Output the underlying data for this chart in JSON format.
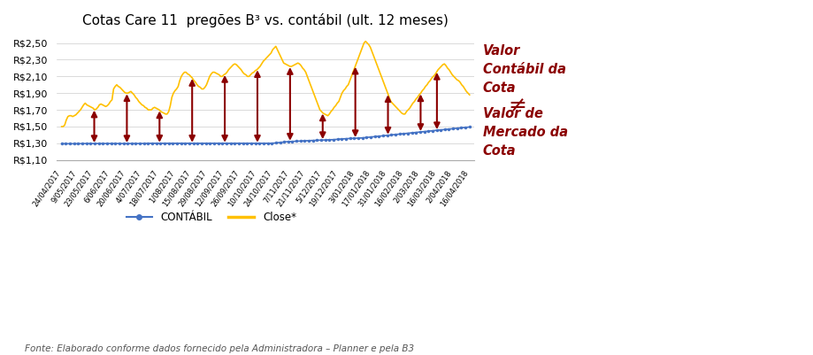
{
  "title": "Cotas Care 11  pregões B³ vs. contábil (ult. 12 meses)",
  "ylim": [
    1.1,
    2.6
  ],
  "yticks": [
    1.1,
    1.3,
    1.5,
    1.7,
    1.9,
    2.1,
    2.3,
    2.5
  ],
  "ytick_labels": [
    "R$1,10",
    "R$1,30",
    "R$1,50",
    "R$1,70",
    "R$1,90",
    "R$2,10",
    "R$2,30",
    "R$2,50"
  ],
  "x_labels": [
    "24/04/2017",
    "9/05/2017",
    "23/05/2017",
    "6/06/2017",
    "20/06/2017",
    "4/07/2017",
    "18/07/2017",
    "1/08/2017",
    "15/08/2017",
    "29/08/2017",
    "12/09/2017",
    "26/09/2017",
    "10/10/2017",
    "24/10/2017",
    "7/11/2017",
    "21/11/2017",
    "5/12/2017",
    "19/12/2017",
    "3/01/2018",
    "17/01/2018",
    "31/01/2018",
    "16/02/2018",
    "2/03/2018",
    "16/03/2018",
    "2/04/2018",
    "16/04/2018"
  ],
  "contabil": [
    1.295,
    1.295,
    1.295,
    1.295,
    1.295,
    1.296,
    1.297,
    1.297,
    1.297,
    1.297,
    1.297,
    1.297,
    1.297,
    1.297,
    1.297,
    1.297,
    1.297,
    1.297,
    1.297,
    1.297,
    1.298,
    1.299,
    1.3,
    1.3,
    1.3,
    1.3,
    1.3,
    1.3,
    1.3,
    1.3,
    1.3,
    1.3,
    1.3,
    1.3,
    1.3,
    1.3,
    1.3,
    1.3,
    1.3,
    1.3,
    1.3,
    1.3,
    1.3,
    1.3,
    1.3,
    1.3,
    1.3,
    1.3,
    1.3,
    1.3,
    1.3,
    1.3,
    1.305,
    1.31,
    1.315,
    1.32,
    1.322,
    1.325,
    1.327,
    1.33,
    1.332,
    1.334,
    1.336,
    1.338,
    1.34,
    1.342,
    1.344,
    1.348,
    1.352,
    1.355,
    1.358,
    1.36,
    1.362,
    1.365,
    1.37,
    1.375,
    1.38,
    1.385,
    1.39,
    1.395,
    1.4,
    1.405,
    1.41,
    1.415,
    1.42,
    1.425,
    1.43,
    1.435,
    1.44,
    1.445,
    1.45,
    1.455,
    1.46,
    1.465,
    1.47,
    1.475,
    1.48,
    1.485,
    1.49,
    1.495
  ],
  "close": [
    1.5,
    1.5,
    1.52,
    1.58,
    1.62,
    1.63,
    1.63,
    1.62,
    1.63,
    1.64,
    1.66,
    1.68,
    1.7,
    1.73,
    1.76,
    1.78,
    1.76,
    1.75,
    1.74,
    1.73,
    1.72,
    1.7,
    1.71,
    1.73,
    1.76,
    1.77,
    1.76,
    1.75,
    1.74,
    1.75,
    1.77,
    1.8,
    1.82,
    1.95,
    1.98,
    2.0,
    1.98,
    1.97,
    1.95,
    1.93,
    1.91,
    1.9,
    1.9,
    1.91,
    1.92,
    1.9,
    1.88,
    1.85,
    1.83,
    1.8,
    1.78,
    1.76,
    1.75,
    1.73,
    1.72,
    1.7,
    1.7,
    1.7,
    1.72,
    1.73,
    1.72,
    1.71,
    1.7,
    1.68,
    1.67,
    1.66,
    1.65,
    1.65,
    1.68,
    1.75,
    1.85,
    1.9,
    1.93,
    1.95,
    1.98,
    2.05,
    2.1,
    2.13,
    2.15,
    2.15,
    2.13,
    2.12,
    2.1,
    2.08,
    2.05,
    2.03,
    2.0,
    1.98,
    1.97,
    1.95,
    1.95,
    1.97,
    2.0,
    2.05,
    2.1,
    2.13,
    2.15,
    2.15,
    2.14,
    2.13,
    2.12,
    2.1,
    2.1,
    2.12,
    2.13,
    2.15,
    2.18,
    2.2,
    2.22,
    2.24,
    2.25,
    2.24,
    2.22,
    2.2,
    2.18,
    2.15,
    2.13,
    2.12,
    2.1,
    2.1,
    2.12,
    2.14,
    2.15,
    2.17,
    2.18,
    2.2,
    2.22,
    2.25,
    2.28,
    2.3,
    2.32,
    2.34,
    2.36,
    2.38,
    2.42,
    2.44,
    2.46,
    2.42,
    2.38,
    2.34,
    2.3,
    2.26,
    2.25,
    2.24,
    2.23,
    2.22,
    2.22,
    2.23,
    2.24,
    2.25,
    2.26,
    2.25,
    2.23,
    2.2,
    2.18,
    2.15,
    2.1,
    2.05,
    2.0,
    1.95,
    1.9,
    1.85,
    1.8,
    1.75,
    1.7,
    1.68,
    1.66,
    1.65,
    1.64,
    1.63,
    1.65,
    1.68,
    1.7,
    1.73,
    1.75,
    1.78,
    1.8,
    1.85,
    1.9,
    1.93,
    1.95,
    1.98,
    2.0,
    2.05,
    2.1,
    2.15,
    2.2,
    2.25,
    2.3,
    2.35,
    2.4,
    2.45,
    2.5,
    2.52,
    2.5,
    2.48,
    2.45,
    2.4,
    2.35,
    2.3,
    2.25,
    2.2,
    2.15,
    2.1,
    2.05,
    2.0,
    1.95,
    1.9,
    1.85,
    1.8,
    1.78,
    1.76,
    1.74,
    1.72,
    1.7,
    1.68,
    1.66,
    1.65,
    1.65,
    1.68,
    1.7,
    1.72,
    1.75,
    1.78,
    1.8,
    1.83,
    1.85,
    1.88,
    1.9,
    1.93,
    1.95,
    1.98,
    2.0,
    2.03,
    2.05,
    2.08,
    2.1,
    2.12,
    2.15,
    2.18,
    2.2,
    2.22,
    2.24,
    2.25,
    2.23,
    2.2,
    2.18,
    2.15,
    2.12,
    2.1,
    2.08,
    2.06,
    2.05,
    2.03,
    2.0,
    1.98,
    1.95,
    1.92,
    1.9,
    1.88
  ],
  "contabil_color": "#4472C4",
  "close_color": "#FFC000",
  "arrow_color": "#8B0000",
  "background_color": "#FFFFFF",
  "legend_labels": [
    "CONTÁBIL",
    "Close*"
  ],
  "annotation_text1": "Valor\nContábil da\nCota",
  "annotation_ne": "≠",
  "annotation_text2": "Valor de\nMercado da\nCota",
  "fonte_text": "Fonte: Elaborado conforme dados fornecido pela Administradora – Planner e pela B3",
  "figsize": [
    9.19,
    4.01
  ],
  "dpi": 100
}
